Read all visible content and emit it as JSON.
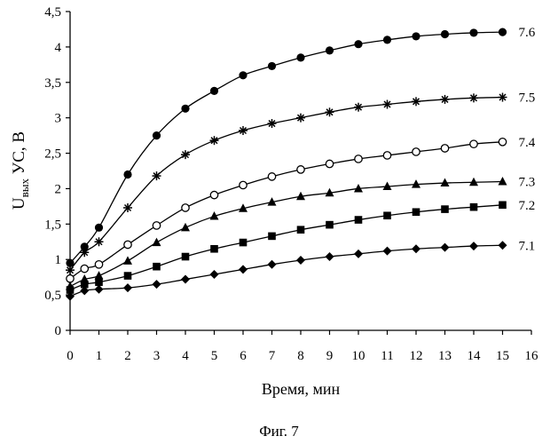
{
  "caption": "Фиг. 7",
  "chart_data": {
    "type": "line",
    "title": "",
    "xlabel": "Время, мин",
    "ylabel": {
      "main": "U",
      "sub": "вых",
      "rest": " УС, В"
    },
    "xlim": [
      0,
      16
    ],
    "ylim": [
      0,
      4.5
    ],
    "x_ticks": [
      0,
      1,
      2,
      3,
      4,
      5,
      6,
      7,
      8,
      9,
      10,
      11,
      12,
      13,
      14,
      15,
      16
    ],
    "y_ticks": [
      0,
      0.5,
      1,
      1.5,
      2,
      2.5,
      3,
      3.5,
      4,
      4.5
    ],
    "y_tick_labels": [
      "0",
      "0,5",
      "1",
      "1,5",
      "2",
      "2,5",
      "3",
      "3,5",
      "4",
      "4,5"
    ],
    "grid": false,
    "legend": "curve labels at right end of lines",
    "x": [
      0,
      0.5,
      1,
      2,
      3,
      4,
      5,
      6,
      7,
      8,
      9,
      10,
      11,
      12,
      13,
      14,
      15
    ],
    "series": [
      {
        "name": "7.6",
        "marker": "circle-filled",
        "values": [
          0.95,
          1.18,
          1.45,
          2.2,
          2.75,
          3.13,
          3.38,
          3.6,
          3.73,
          3.85,
          3.95,
          4.04,
          4.1,
          4.15,
          4.18,
          4.2,
          4.21
        ]
      },
      {
        "name": "7.5",
        "marker": "asterisk",
        "values": [
          0.85,
          1.1,
          1.25,
          1.73,
          2.18,
          2.48,
          2.68,
          2.82,
          2.92,
          3.0,
          3.08,
          3.15,
          3.19,
          3.23,
          3.26,
          3.28,
          3.29
        ]
      },
      {
        "name": "7.4",
        "marker": "circle-open",
        "values": [
          0.73,
          0.87,
          0.93,
          1.21,
          1.48,
          1.73,
          1.91,
          2.05,
          2.17,
          2.27,
          2.35,
          2.42,
          2.47,
          2.52,
          2.57,
          2.63,
          2.66
        ]
      },
      {
        "name": "7.3",
        "marker": "triangle",
        "values": [
          0.62,
          0.72,
          0.77,
          0.98,
          1.24,
          1.45,
          1.61,
          1.72,
          1.81,
          1.89,
          1.94,
          2.0,
          2.03,
          2.06,
          2.08,
          2.09,
          2.1
        ]
      },
      {
        "name": "7.2",
        "marker": "square",
        "values": [
          0.57,
          0.65,
          0.68,
          0.77,
          0.9,
          1.04,
          1.15,
          1.24,
          1.33,
          1.42,
          1.49,
          1.56,
          1.62,
          1.67,
          1.71,
          1.74,
          1.77
        ]
      },
      {
        "name": "7.1",
        "marker": "diamond",
        "values": [
          0.48,
          0.56,
          0.58,
          0.6,
          0.65,
          0.72,
          0.79,
          0.86,
          0.93,
          0.99,
          1.04,
          1.08,
          1.12,
          1.15,
          1.17,
          1.19,
          1.2
        ]
      }
    ]
  }
}
